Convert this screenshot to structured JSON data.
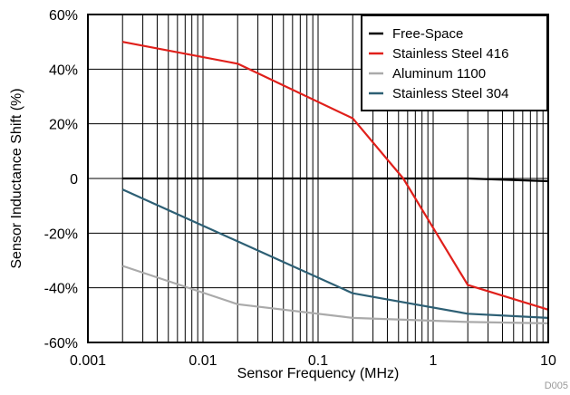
{
  "chart_data": {
    "type": "line",
    "xlabel": "Sensor Frequency (MHz)",
    "ylabel": "Sensor Inductance Shift (%)",
    "x_scale": "log",
    "xlim": [
      0.001,
      10
    ],
    "ylim": [
      -60,
      60
    ],
    "x_ticks": [
      0.001,
      0.01,
      0.1,
      1,
      10
    ],
    "x_tick_labels": [
      "0.001",
      "0.01",
      "0.1",
      "1",
      "10"
    ],
    "y_ticks": [
      -60,
      -40,
      -20,
      0,
      20,
      40,
      60
    ],
    "y_tick_labels": [
      "-60%",
      "-40%",
      "-20%",
      "0",
      "20%",
      "40%",
      "60%"
    ],
    "grid": true,
    "legend_position": "top-right",
    "series": [
      {
        "name": "Free-Space",
        "color": "#000000",
        "x": [
          0.002,
          0.2,
          2,
          10
        ],
        "y": [
          0,
          0,
          0,
          -1
        ]
      },
      {
        "name": "Stainless Steel 416",
        "color": "#e0201b",
        "x": [
          0.002,
          0.02,
          0.2,
          0.55,
          2,
          10
        ],
        "y": [
          50,
          42,
          22,
          0,
          -39,
          -48
        ]
      },
      {
        "name": "Aluminum 1100",
        "color": "#aaaaaa",
        "x": [
          0.002,
          0.02,
          0.2,
          2,
          10
        ],
        "y": [
          -32,
          -46,
          -51,
          -52.5,
          -53
        ]
      },
      {
        "name": "Stainless Steel 304",
        "color": "#2d5f74",
        "x": [
          0.002,
          0.02,
          0.2,
          2,
          10
        ],
        "y": [
          -4,
          -23,
          -42,
          -49.5,
          -51
        ]
      }
    ],
    "code_label": "D005"
  }
}
